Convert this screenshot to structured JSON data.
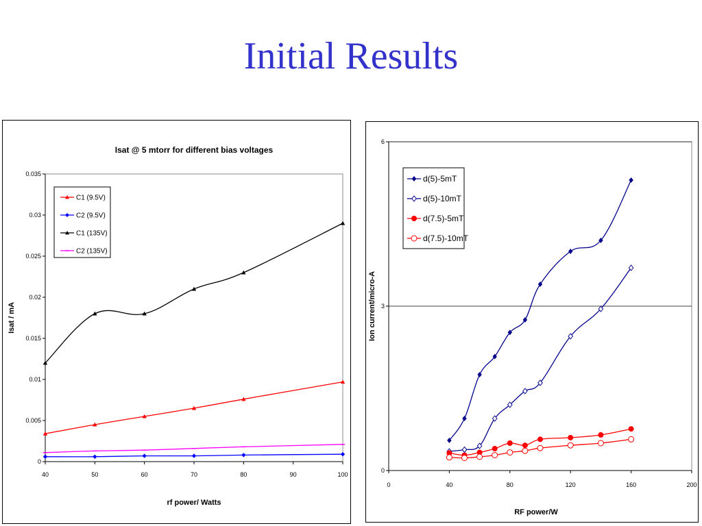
{
  "slide": {
    "title": "Initial Results"
  },
  "chart_data": [
    {
      "type": "line",
      "title": "Isat @ 5 mtorr for different bias voltages",
      "xlabel": "rf power/ Watts",
      "ylabel": "Isat / mA",
      "xlim": [
        40,
        100
      ],
      "ylim": [
        0,
        0.035
      ],
      "xticks": [
        "40",
        "50",
        "60",
        "70",
        "80",
        "90",
        "100"
      ],
      "yticks": [
        "0",
        "0.005",
        "0.01",
        "0.015",
        "0.02",
        "0.025",
        "0.03",
        "0.035"
      ],
      "grid": false,
      "legend_position": "top-left",
      "series": [
        {
          "name": "C1 (9.5V)",
          "color": "#ff0000",
          "marker": "triangle",
          "x": [
            40,
            50,
            60,
            70,
            80,
            100
          ],
          "y": [
            0.0034,
            0.0045,
            0.0055,
            0.0065,
            0.0076,
            0.0097
          ]
        },
        {
          "name": "C2 (9.5V)",
          "color": "#0000ff",
          "marker": "diamond",
          "x": [
            40,
            50,
            60,
            70,
            80,
            100
          ],
          "y": [
            0.0006,
            0.0006,
            0.0007,
            0.0007,
            0.0008,
            0.0009
          ]
        },
        {
          "name": "C1 (135V)",
          "color": "#000000",
          "marker": "triangle",
          "x": [
            40,
            50,
            60,
            70,
            80,
            100
          ],
          "y": [
            0.012,
            0.018,
            0.018,
            0.021,
            0.023,
            0.029
          ]
        },
        {
          "name": "C2 (135V)",
          "color": "#ff00ff",
          "marker": "dash",
          "x": [
            40,
            50,
            60,
            70,
            80,
            100
          ],
          "y": [
            0.0011,
            0.0013,
            0.0014,
            0.0016,
            0.0018,
            0.0021
          ]
        }
      ]
    },
    {
      "type": "line",
      "title": "",
      "xlabel": "RF power/W",
      "ylabel": "Ion current/micro-A",
      "xlim": [
        0,
        200
      ],
      "ylim": [
        0,
        6
      ],
      "xticks": [
        "0",
        "40",
        "80",
        "120",
        "160",
        "200"
      ],
      "yticks": [
        "0",
        "3",
        "6"
      ],
      "grid": true,
      "legend_position": "top-left",
      "series": [
        {
          "name": "d(5)-5mT",
          "color": "#00008b",
          "marker": "diamond-filled",
          "x": [
            40,
            50,
            60,
            70,
            80,
            90,
            100,
            120,
            140,
            160
          ],
          "y": [
            0.55,
            0.95,
            1.75,
            2.08,
            2.52,
            2.75,
            3.4,
            4.0,
            4.2,
            5.3
          ]
        },
        {
          "name": "d(5)-10mT",
          "color": "#00008b",
          "marker": "diamond-open",
          "x": [
            40,
            50,
            60,
            70,
            80,
            90,
            100,
            120,
            140,
            160
          ],
          "y": [
            0.35,
            0.38,
            0.45,
            0.95,
            1.2,
            1.45,
            1.6,
            2.45,
            2.95,
            3.7
          ]
        },
        {
          "name": "d(7.5)-5mT",
          "color": "#ff0000",
          "marker": "circle-filled",
          "x": [
            40,
            50,
            60,
            70,
            80,
            90,
            100,
            120,
            140,
            160
          ],
          "y": [
            0.32,
            0.28,
            0.33,
            0.4,
            0.5,
            0.46,
            0.57,
            0.6,
            0.65,
            0.76
          ]
        },
        {
          "name": "d(7.5)-10mT",
          "color": "#ff0000",
          "marker": "circle-open",
          "x": [
            40,
            50,
            60,
            70,
            80,
            90,
            100,
            120,
            140,
            160
          ],
          "y": [
            0.24,
            0.23,
            0.25,
            0.28,
            0.33,
            0.36,
            0.41,
            0.46,
            0.5,
            0.57
          ]
        }
      ]
    }
  ]
}
